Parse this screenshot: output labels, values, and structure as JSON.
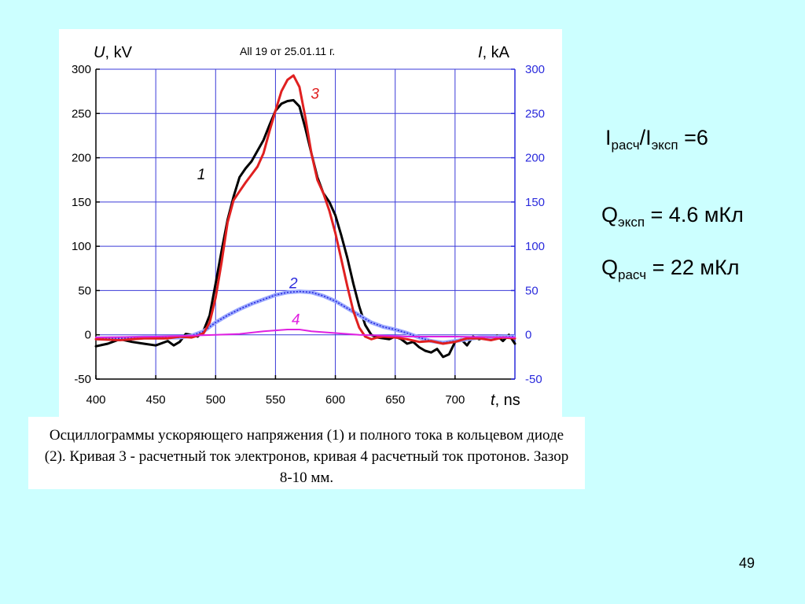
{
  "chart_data": {
    "type": "line",
    "title": "All 19 от 25.01.11 г.",
    "xlabel": {
      "symbol": "t",
      "unit": ", ns"
    },
    "ylabel_left": {
      "symbol": "U",
      "unit": ", kV"
    },
    "ylabel_right": {
      "symbol": "I",
      "unit": ", kA"
    },
    "xlim": [
      400,
      750
    ],
    "ylim": [
      -50,
      300
    ],
    "xticks": [
      "400",
      "450",
      "500",
      "550",
      "600",
      "650",
      "700"
    ],
    "yticks_left": [
      "-50",
      "0",
      "50",
      "100",
      "150",
      "200",
      "250",
      "300"
    ],
    "yticks_right": [
      "-50",
      "0",
      "50",
      "100",
      "150",
      "200",
      "250",
      "300"
    ],
    "grid": true,
    "series": [
      {
        "name": "1",
        "color": "#000000",
        "x": [
          400,
          410,
          420,
          430,
          440,
          450,
          460,
          465,
          470,
          475,
          480,
          485,
          490,
          495,
          500,
          505,
          510,
          515,
          520,
          525,
          530,
          535,
          540,
          545,
          550,
          555,
          560,
          565,
          570,
          575,
          580,
          585,
          590,
          595,
          600,
          605,
          610,
          615,
          620,
          625,
          630,
          635,
          640,
          645,
          650,
          655,
          660,
          665,
          670,
          675,
          680,
          685,
          690,
          695,
          700,
          705,
          710,
          715,
          720,
          725,
          730,
          735,
          740,
          745,
          750
        ],
        "y": [
          -13,
          -10,
          -5,
          -8,
          -10,
          -12,
          -7,
          -12,
          -8,
          1,
          0,
          -2,
          5,
          22,
          58,
          95,
          130,
          156,
          178,
          188,
          196,
          208,
          220,
          237,
          253,
          261,
          264,
          265,
          258,
          233,
          205,
          178,
          160,
          150,
          135,
          112,
          87,
          58,
          32,
          11,
          0,
          -3,
          -4,
          -5,
          -2,
          -5,
          -10,
          -8,
          -14,
          -18,
          -20,
          -16,
          -25,
          -22,
          -8,
          -5,
          -12,
          -2,
          -5,
          -3,
          -6,
          -1,
          -7,
          0,
          -10
        ]
      },
      {
        "name": "2",
        "color": "#2a2adc",
        "x": [
          400,
          420,
          440,
          460,
          470,
          480,
          490,
          500,
          510,
          520,
          530,
          540,
          550,
          560,
          570,
          580,
          590,
          600,
          610,
          620,
          630,
          640,
          650,
          660,
          670,
          680,
          690,
          700,
          720,
          750
        ],
        "y": [
          -4,
          -4,
          -3,
          -3,
          -3,
          -1,
          4,
          14,
          22,
          29,
          35,
          40,
          45,
          48,
          49,
          48,
          44,
          38,
          30,
          22,
          14,
          9,
          6,
          2,
          -3,
          -7,
          -9,
          -7,
          -3,
          -2
        ]
      },
      {
        "name": "3",
        "color": "#e02020",
        "x": [
          400,
          420,
          440,
          460,
          470,
          480,
          485,
          490,
          495,
          500,
          505,
          510,
          515,
          520,
          525,
          530,
          535,
          540,
          545,
          550,
          555,
          560,
          565,
          570,
          575,
          580,
          585,
          590,
          595,
          600,
          605,
          610,
          615,
          620,
          625,
          630,
          635,
          640,
          650,
          660,
          670,
          680,
          690,
          700,
          710,
          720,
          730,
          740,
          750
        ],
        "y": [
          -5,
          -6,
          -4,
          -4,
          -2,
          -3,
          -1,
          2,
          14,
          42,
          82,
          127,
          152,
          162,
          172,
          181,
          190,
          205,
          230,
          253,
          275,
          288,
          293,
          280,
          245,
          205,
          175,
          160,
          140,
          115,
          85,
          55,
          27,
          8,
          -2,
          -5,
          -3,
          -2,
          -3,
          -5,
          -8,
          -7,
          -10,
          -8,
          -4,
          -4,
          -6,
          -3,
          -4
        ]
      },
      {
        "name": "4",
        "color": "#e020e0",
        "x": [
          400,
          450,
          480,
          500,
          520,
          540,
          560,
          570,
          580,
          600,
          620,
          640,
          660,
          700,
          750
        ],
        "y": [
          -3,
          -2,
          -1,
          0,
          1,
          4,
          6,
          6,
          4,
          2,
          0,
          -1,
          -2,
          -2,
          -3
        ]
      }
    ]
  },
  "annotations": [
    {
      "text": "1",
      "x": 488,
      "y": 181,
      "color": "#000000"
    },
    {
      "text": "2",
      "x": 565,
      "y": 58,
      "color": "#2a2adc"
    },
    {
      "text": "3",
      "x": 583,
      "y": 272,
      "color": "#e02020"
    },
    {
      "text": "4",
      "x": 567,
      "y": 17,
      "color": "#e020e0"
    }
  ],
  "caption": "Осциллограммы ускоряющего напряжения (1) и полного тока в кольцевом диоде (2). Кривая 3 - расчетный ток электронов, кривая 4 расчетный ток протонов. Зазор 8-10 мм.",
  "stats": {
    "ratio": {
      "a": "I",
      "a_sub": "расч",
      "sep": "/",
      "b": "I",
      "b_sub": "эксп",
      "value": " =6"
    },
    "q_exp": {
      "label": "Q",
      "sub": "эксп",
      "value": " = 4.6 мКл"
    },
    "q_calc": {
      "label": "Q",
      "sub": "расч",
      "value": " = 22 мКл"
    }
  },
  "page_number": "49"
}
